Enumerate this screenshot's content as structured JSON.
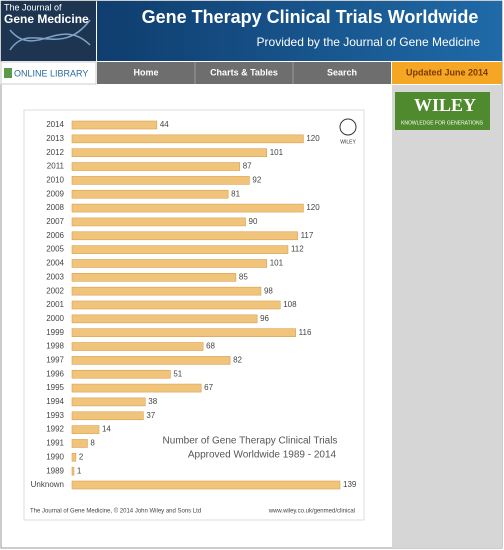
{
  "header": {
    "logo": [
      "The Journal of",
      "Gene Medicine"
    ],
    "title": "Gene Therapy Clinical Trials Worldwide",
    "subtitle": "Provided by the Journal of Gene Medicine"
  },
  "nav": {
    "library": "ONLINE LIBRARY",
    "items": [
      "Home",
      "Charts & Tables",
      "Search"
    ],
    "updated": "Updated June 2014"
  },
  "sidebar": {
    "brand": "WILEY",
    "tagline": "KNOWLEDGE FOR GENERATIONS"
  },
  "chart_data": {
    "type": "bar",
    "orientation": "horizontal",
    "categories": [
      "2014",
      "2013",
      "2012",
      "2011",
      "2010",
      "2009",
      "2008",
      "2007",
      "2006",
      "2005",
      "2004",
      "2003",
      "2002",
      "2001",
      "2000",
      "1999",
      "1998",
      "1997",
      "1996",
      "1995",
      "1994",
      "1993",
      "1992",
      "1991",
      "1990",
      "1989",
      "Unknown"
    ],
    "values": [
      44,
      120,
      101,
      87,
      92,
      81,
      120,
      90,
      117,
      112,
      101,
      85,
      98,
      108,
      96,
      116,
      68,
      82,
      51,
      67,
      38,
      37,
      14,
      8,
      2,
      1,
      139
    ],
    "color": "#f1c47c",
    "annotations": [
      "Number of Gene Therapy Clinical Trials",
      "Approved Worldwide 1989 - 2014"
    ],
    "brand": "WILEY",
    "footer": [
      "The Journal of Gene Medicine, © 2014 John Wiley and Sons Ltd",
      "www.wiley.co.uk/genmed/clinical"
    ]
  }
}
